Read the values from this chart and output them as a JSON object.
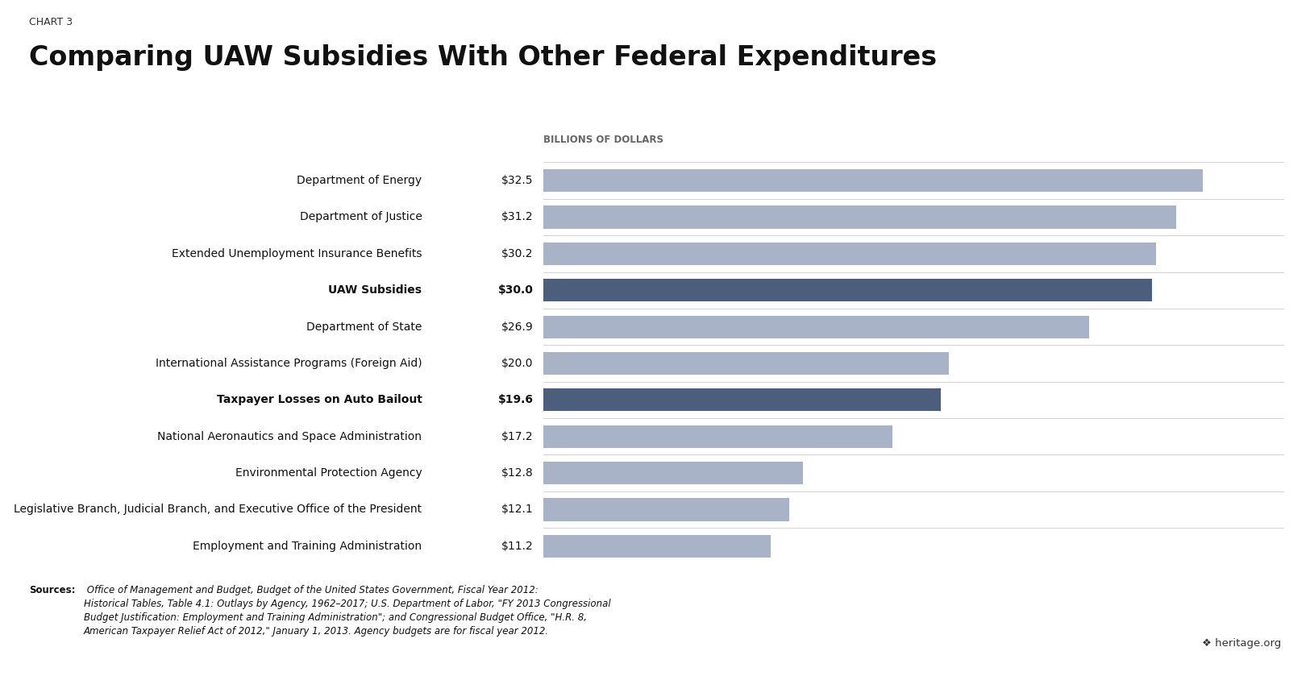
{
  "chart_label": "CHART 3",
  "title": "Comparing UAW Subsidies With Other Federal Expenditures",
  "axis_label": "BILLIONS OF DOLLARS",
  "categories": [
    "Department of Energy",
    "Department of Justice",
    "Extended Unemployment Insurance Benefits",
    "UAW Subsidies",
    "Department of State",
    "International Assistance Programs (Foreign Aid)",
    "Taxpayer Losses on Auto Bailout",
    "National Aeronautics and Space Administration",
    "Environmental Protection Agency",
    "Legislative Branch, Judicial Branch, and Executive Office of the President",
    "Employment and Training Administration"
  ],
  "values": [
    32.5,
    31.2,
    30.2,
    30.0,
    26.9,
    20.0,
    19.6,
    17.2,
    12.8,
    12.1,
    11.2
  ],
  "value_labels": [
    "$32.5",
    "$31.2",
    "$30.2",
    "$30.0",
    "$26.9",
    "$20.0",
    "$19.6",
    "$17.2",
    "$12.8",
    "$12.1",
    "$11.2"
  ],
  "bold_flags": [
    false,
    false,
    false,
    true,
    false,
    false,
    true,
    false,
    false,
    false,
    false
  ],
  "bar_colors": [
    "#a8b3c8",
    "#a8b3c8",
    "#a8b3c8",
    "#4b5f7c",
    "#a8b3c8",
    "#a8b3c8",
    "#4b5f7c",
    "#a8b3c8",
    "#a8b3c8",
    "#a8b3c8",
    "#a8b3c8"
  ],
  "xlim": [
    0,
    36.5
  ],
  "background_color": "#ffffff",
  "source_bold": "Sources:",
  "source_rest": " Office of Management and Budget, Budget of the United States Government, Fiscal Year 2012:\nHistorical Tables, Table 4.1: Outlays by Agency, 1962–2017; U.S. Department of Labor, \"FY 2013 Congressional\nBudget Justification: Employment and Training Administration\"; and Congressional Budget Office, \"H.R. 8,\nAmerican Taxpayer Relief Act of 2012,\" January 1, 2013. Agency budgets are for fiscal year 2012.",
  "heritage_text": "❖ heritage.org",
  "chart_label_fontsize": 9,
  "title_fontsize": 24,
  "axis_label_fontsize": 8.5,
  "bar_label_fontsize": 10,
  "source_fontsize": 8.5,
  "bar_height": 0.62
}
